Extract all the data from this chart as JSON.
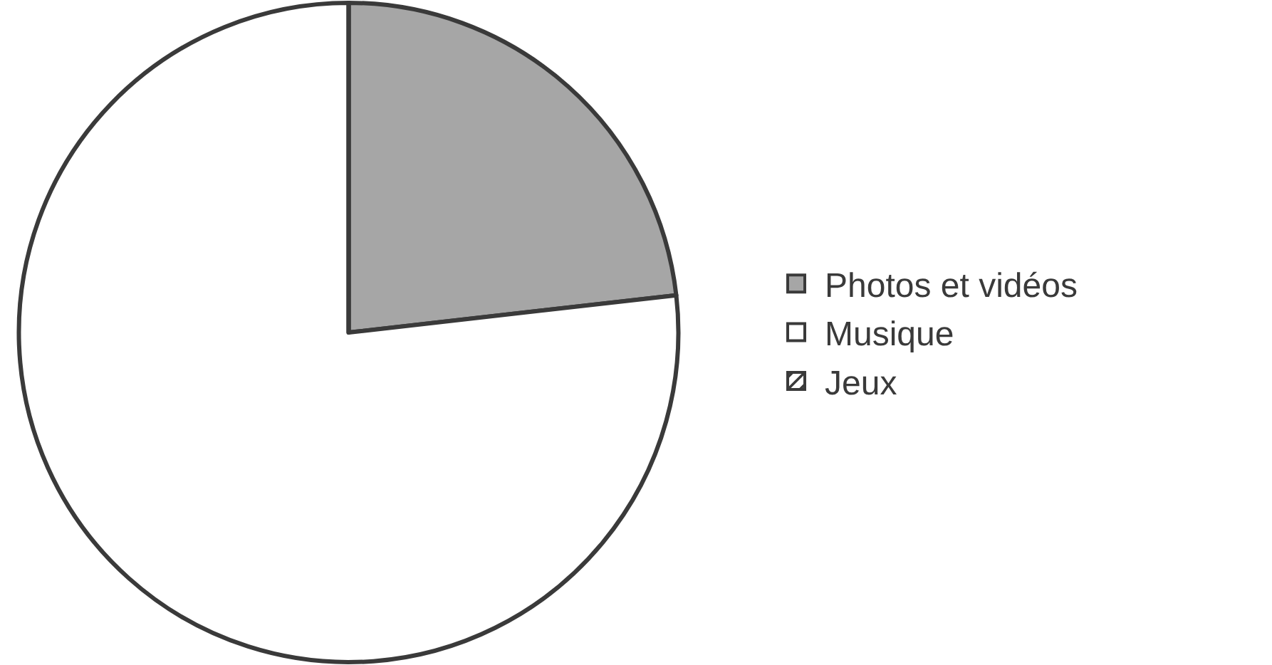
{
  "chart_data": {
    "type": "pie",
    "categories": [
      "Photos et vidéos",
      "Musique",
      "Jeux"
    ],
    "values": [
      23.2,
      76.8,
      0
    ],
    "colors": [
      "#a6a6a6",
      "#ffffff",
      "#ffffff"
    ],
    "legend": "right"
  }
}
